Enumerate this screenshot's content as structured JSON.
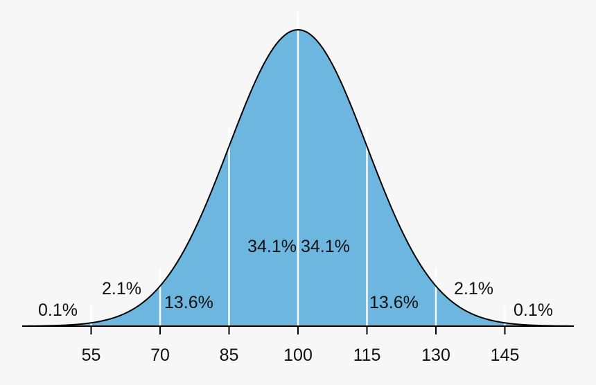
{
  "chart_data": {
    "type": "area",
    "distribution": "normal",
    "mean": 100,
    "sd": 15,
    "xlim": [
      40,
      160
    ],
    "x_ticks": [
      55,
      70,
      85,
      100,
      115,
      130,
      145
    ],
    "x_tick_labels": [
      "55",
      "70",
      "85",
      "100",
      "115",
      "130",
      "145"
    ],
    "dividers": [
      55,
      70,
      85,
      100,
      115,
      130,
      145
    ],
    "regions": [
      {
        "from": 40,
        "to": 55,
        "label": "0.1%"
      },
      {
        "from": 55,
        "to": 70,
        "label": "2.1%"
      },
      {
        "from": 70,
        "to": 85,
        "label": "13.6%"
      },
      {
        "from": 85,
        "to": 100,
        "label": "34.1%"
      },
      {
        "from": 100,
        "to": 115,
        "label": "34.1%"
      },
      {
        "from": 115,
        "to": 130,
        "label": "13.6%"
      },
      {
        "from": 130,
        "to": 145,
        "label": "2.1%"
      },
      {
        "from": 145,
        "to": 160,
        "label": "0.1%"
      }
    ],
    "colors": {
      "fill": "#6cb6df",
      "curve": "#000000",
      "divider": "#ffffff",
      "background": "#f7f7f7"
    }
  }
}
